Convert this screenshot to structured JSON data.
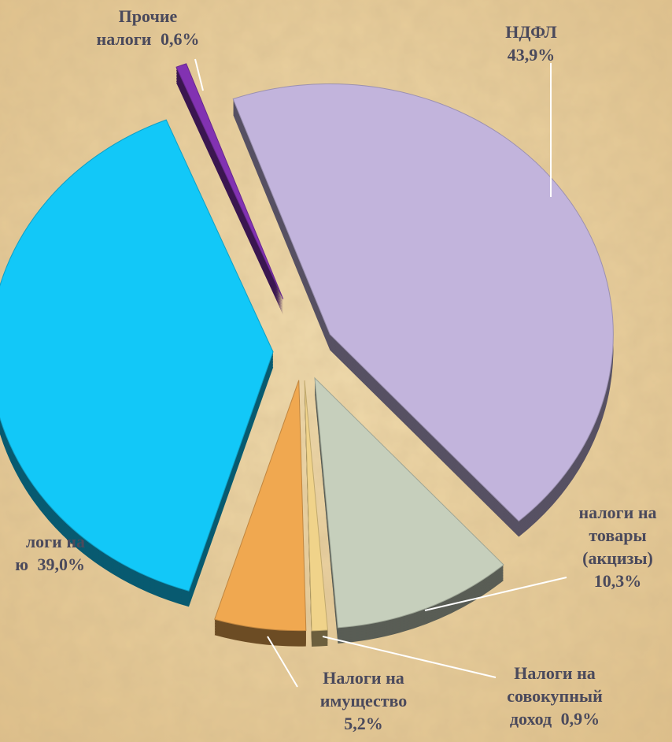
{
  "chart_data": {
    "type": "pie",
    "categories": [
      [
        "НДФЛ"
      ],
      [
        "налоги на",
        "товары",
        "(акцизы)"
      ],
      [
        "Налоги на",
        "совокупный",
        "доход"
      ],
      [
        "Налоги на",
        "имущество"
      ],
      [
        "логи на",
        "ю"
      ],
      [
        "Прочие",
        "налоги"
      ]
    ],
    "values": [
      43.9,
      10.3,
      0.9,
      5.2,
      39.0,
      0.6
    ],
    "value_labels": [
      "43,9%",
      "10,3%",
      "0,9%",
      "5,2%",
      "39,0%",
      "0,6%"
    ],
    "colors": [
      "#c2b4dc",
      "#c6cfbc",
      "#f0d38a",
      "#f0a850",
      "#12c8f8",
      "#8232b2"
    ]
  }
}
